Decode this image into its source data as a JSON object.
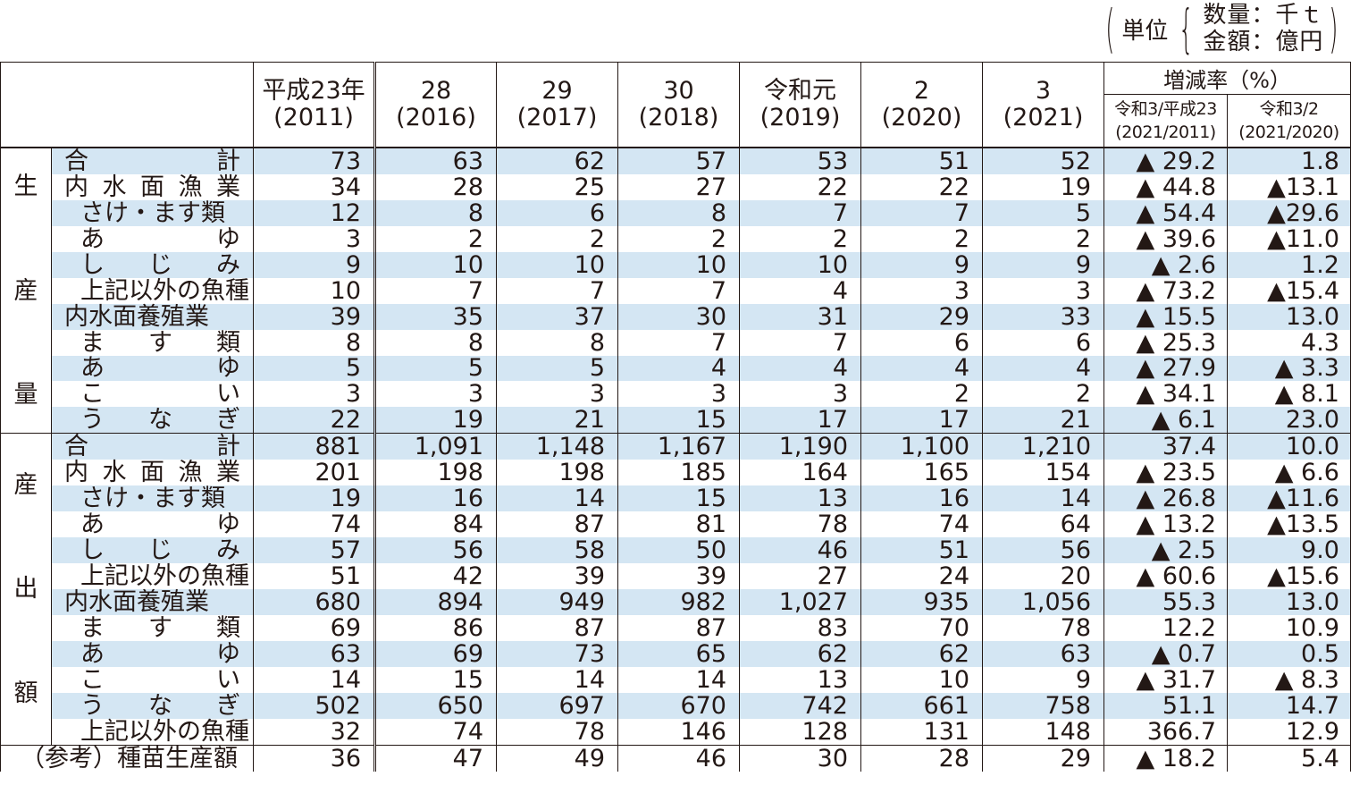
{
  "unit": {
    "label": "単位",
    "line1": "数量：千ｔ",
    "line2": "金額：億円"
  },
  "header": {
    "years": [
      {
        "top": "平成23年",
        "bottom": "(2011)"
      },
      {
        "top": "28",
        "bottom": "(2016)"
      },
      {
        "top": "29",
        "bottom": "(2017)"
      },
      {
        "top": "30",
        "bottom": "(2018)"
      },
      {
        "top": "令和元",
        "bottom": "(2019)"
      },
      {
        "top": "2",
        "bottom": "(2020)"
      },
      {
        "top": "3",
        "bottom": "(2021)"
      }
    ],
    "rate_title": "増減率（%）",
    "rate_cols": [
      {
        "top": "令和3/平成23",
        "bottom": "(2021/2011)"
      },
      {
        "top": "令和3/2",
        "bottom": "(2021/2020)"
      }
    ]
  },
  "groups": [
    {
      "category": [
        "生",
        "産",
        "量"
      ],
      "rows": [
        {
          "label": "合　　　　　計",
          "lv": 1,
          "v": [
            "73",
            "63",
            "62",
            "57",
            "53",
            "51",
            "52"
          ],
          "r1": "▲ 29.2",
          "r2": "1.8"
        },
        {
          "label": "内水面漁業",
          "lv": 1,
          "v": [
            "34",
            "28",
            "25",
            "27",
            "22",
            "22",
            "19"
          ],
          "r1": "▲ 44.8",
          "r2": "▲13.1"
        },
        {
          "label": "さけ・ます類",
          "lv": 2,
          "v": [
            "12",
            "8",
            "6",
            "8",
            "7",
            "7",
            "5"
          ],
          "r1": "▲ 54.4",
          "r2": "▲29.6"
        },
        {
          "label": "あ　　　ゆ",
          "lv": 2,
          "v": [
            "3",
            "2",
            "2",
            "2",
            "2",
            "2",
            "2"
          ],
          "r1": "▲ 39.6",
          "r2": "▲11.0"
        },
        {
          "label": "し　じ　み",
          "lv": 2,
          "v": [
            "9",
            "10",
            "10",
            "10",
            "10",
            "9",
            "9"
          ],
          "r1": "▲ 2.6",
          "r2": "1.2"
        },
        {
          "label": "上記以外の魚種",
          "lv": 2,
          "v": [
            "10",
            "7",
            "7",
            "7",
            "4",
            "3",
            "3"
          ],
          "r1": "▲ 73.2",
          "r2": "▲15.4"
        },
        {
          "label": "内水面養殖業",
          "lv": 1,
          "v": [
            "39",
            "35",
            "37",
            "30",
            "31",
            "29",
            "33"
          ],
          "r1": "▲ 15.5",
          "r2": "13.0"
        },
        {
          "label": "ま　す　類",
          "lv": 2,
          "v": [
            "8",
            "8",
            "8",
            "7",
            "7",
            "6",
            "6"
          ],
          "r1": "▲ 25.3",
          "r2": "4.3"
        },
        {
          "label": "あ　　　ゆ",
          "lv": 2,
          "v": [
            "5",
            "5",
            "5",
            "4",
            "4",
            "4",
            "4"
          ],
          "r1": "▲ 27.9",
          "r2": "▲ 3.3"
        },
        {
          "label": "こ　　　い",
          "lv": 2,
          "v": [
            "3",
            "3",
            "3",
            "3",
            "3",
            "2",
            "2"
          ],
          "r1": "▲ 34.1",
          "r2": "▲ 8.1"
        },
        {
          "label": "う　な　ぎ",
          "lv": 2,
          "v": [
            "22",
            "19",
            "21",
            "15",
            "17",
            "17",
            "21"
          ],
          "r1": "▲ 6.1",
          "r2": "23.0"
        }
      ]
    },
    {
      "category": [
        "産",
        "出",
        "額"
      ],
      "rows": [
        {
          "label": "合　　　　　計",
          "lv": 1,
          "v": [
            "881",
            "1,091",
            "1,148",
            "1,167",
            "1,190",
            "1,100",
            "1,210"
          ],
          "r1": "37.4",
          "r2": "10.0"
        },
        {
          "label": "内水面漁業",
          "lv": 1,
          "v": [
            "201",
            "198",
            "198",
            "185",
            "164",
            "165",
            "154"
          ],
          "r1": "▲ 23.5",
          "r2": "▲ 6.6"
        },
        {
          "label": "さけ・ます類",
          "lv": 2,
          "v": [
            "19",
            "16",
            "14",
            "15",
            "13",
            "16",
            "14"
          ],
          "r1": "▲ 26.8",
          "r2": "▲11.6"
        },
        {
          "label": "あ　　　ゆ",
          "lv": 2,
          "v": [
            "74",
            "84",
            "87",
            "81",
            "78",
            "74",
            "64"
          ],
          "r1": "▲ 13.2",
          "r2": "▲13.5"
        },
        {
          "label": "し　じ　み",
          "lv": 2,
          "v": [
            "57",
            "56",
            "58",
            "50",
            "46",
            "51",
            "56"
          ],
          "r1": "▲ 2.5",
          "r2": "9.0"
        },
        {
          "label": "上記以外の魚種",
          "lv": 2,
          "v": [
            "51",
            "42",
            "39",
            "39",
            "27",
            "24",
            "20"
          ],
          "r1": "▲ 60.6",
          "r2": "▲15.6"
        },
        {
          "label": "内水面養殖業",
          "lv": 1,
          "v": [
            "680",
            "894",
            "949",
            "982",
            "1,027",
            "935",
            "1,056"
          ],
          "r1": "55.3",
          "r2": "13.0"
        },
        {
          "label": "ま　す　類",
          "lv": 2,
          "v": [
            "69",
            "86",
            "87",
            "87",
            "83",
            "70",
            "78"
          ],
          "r1": "12.2",
          "r2": "10.9"
        },
        {
          "label": "あ　　　ゆ",
          "lv": 2,
          "v": [
            "63",
            "69",
            "73",
            "65",
            "62",
            "62",
            "63"
          ],
          "r1": "▲ 0.7",
          "r2": "0.5"
        },
        {
          "label": "こ　　　い",
          "lv": 2,
          "v": [
            "14",
            "15",
            "14",
            "14",
            "13",
            "10",
            "9"
          ],
          "r1": "▲ 31.7",
          "r2": "▲ 8.3"
        },
        {
          "label": "う　な　ぎ",
          "lv": 2,
          "v": [
            "502",
            "650",
            "697",
            "670",
            "742",
            "661",
            "758"
          ],
          "r1": "51.1",
          "r2": "14.7"
        },
        {
          "label": "上記以外の魚種",
          "lv": 2,
          "v": [
            "32",
            "74",
            "78",
            "146",
            "128",
            "131",
            "148"
          ],
          "r1": "366.7",
          "r2": "12.9"
        }
      ]
    }
  ],
  "reference": {
    "label": "（参考）種苗生産額",
    "v": [
      "36",
      "47",
      "49",
      "46",
      "30",
      "28",
      "29"
    ],
    "r1": "▲ 18.2",
    "r2": "5.4"
  }
}
